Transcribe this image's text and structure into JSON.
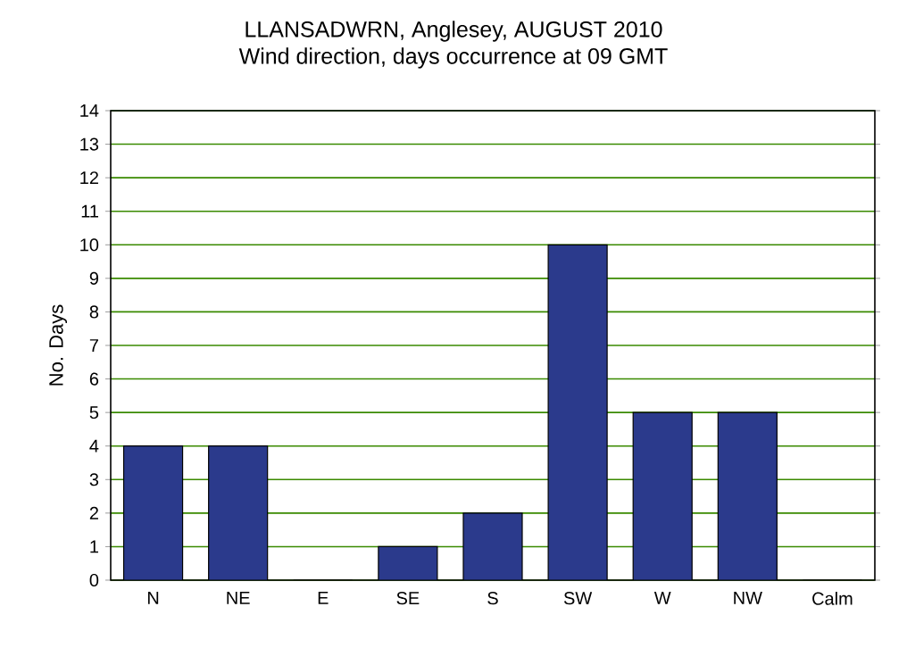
{
  "chart_data": {
    "type": "bar",
    "title": "LLANSADWRN, Anglesey, AUGUST 2010",
    "subtitle": "Wind direction, days occurrence at 09 GMT",
    "ylabel": "No. Days",
    "categories": [
      "N",
      "NE",
      "E",
      "SE",
      "S",
      "SW",
      "W",
      "NW",
      "Calm"
    ],
    "values": [
      4,
      4,
      0,
      1,
      2,
      10,
      5,
      5,
      0
    ],
    "color": "#2b3a8c",
    "ylim": [
      0,
      14
    ],
    "yticks": [
      0,
      1,
      2,
      3,
      4,
      5,
      6,
      7,
      8,
      9,
      10,
      11,
      12,
      13,
      14
    ],
    "grid": "y"
  }
}
